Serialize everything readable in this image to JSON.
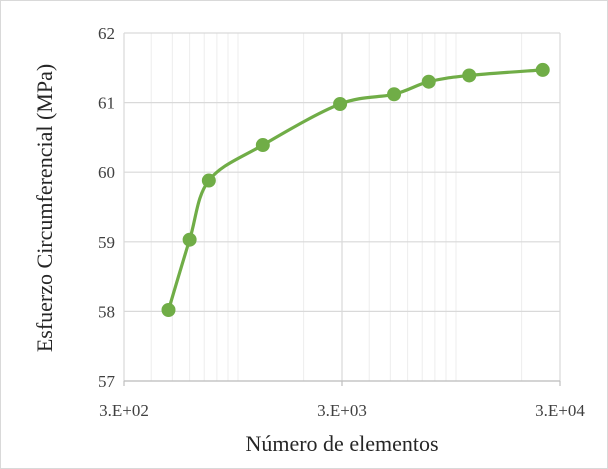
{
  "chart_data": {
    "type": "scatter",
    "title": "",
    "xlabel": "Número de elementos",
    "ylabel": "Esfuerzo Circumferencial (MPa)",
    "x_scale": "log",
    "xlim": [
      300,
      30000
    ],
    "ylim": [
      57,
      62
    ],
    "x_ticks": [
      300,
      3000,
      30000
    ],
    "x_tick_labels": [
      "3.E+02",
      "3.E+03",
      "3.E+04"
    ],
    "y_ticks": [
      57,
      58,
      59,
      60,
      61,
      62
    ],
    "y_tick_labels": [
      "57",
      "58",
      "59",
      "60",
      "61",
      "62"
    ],
    "grid": true,
    "legend": "none",
    "series": [
      {
        "marker": "circle",
        "line": "smoothed",
        "color": "#70ad47",
        "points": [
          {
            "x": 480,
            "y": 58.02
          },
          {
            "x": 600,
            "y": 59.03
          },
          {
            "x": 735,
            "y": 59.88
          },
          {
            "x": 1300,
            "y": 60.39
          },
          {
            "x": 2940,
            "y": 60.98
          },
          {
            "x": 5200,
            "y": 61.12
          },
          {
            "x": 7500,
            "y": 61.3
          },
          {
            "x": 11500,
            "y": 61.39
          },
          {
            "x": 25000,
            "y": 61.47
          }
        ]
      }
    ]
  },
  "colors": {
    "series": "#70ad47",
    "major_grid": "#d9d9d9",
    "minor_grid": "#ededed",
    "axis_text": "#404040"
  }
}
